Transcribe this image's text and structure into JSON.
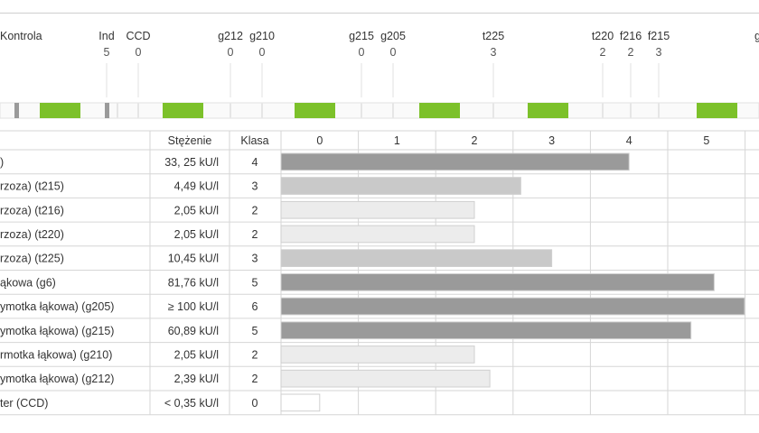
{
  "strip": {
    "labels": [
      {
        "name": "Kontrola",
        "class": ""
      },
      {
        "name": "Ind",
        "class": "5"
      },
      {
        "name": "CCD",
        "class": "0"
      },
      {
        "name": "g212",
        "class": "0"
      },
      {
        "name": "g210",
        "class": "0"
      },
      {
        "name": "g215",
        "class": "0"
      },
      {
        "name": "g205",
        "class": "0"
      },
      {
        "name": "t225",
        "class": "3"
      },
      {
        "name": "t220",
        "class": "2"
      },
      {
        "name": "f216",
        "class": "2"
      },
      {
        "name": "f215",
        "class": "3"
      },
      {
        "name": "g",
        "class": ""
      }
    ],
    "colors": {
      "green": "#7cc12a",
      "gray": "#9a9a9a",
      "light": "#e6e6e6"
    }
  },
  "chart_data": {
    "type": "bar",
    "headers": {
      "concentration": "Stężenie",
      "class": "Klasa"
    },
    "x_ticks": [
      "0",
      "1",
      "2",
      "3",
      "4",
      "5"
    ],
    "xlim": [
      0,
      6
    ],
    "rows": [
      {
        "label": ")",
        "concentration": "33, 25 kU/l",
        "class": "4",
        "value": 4.5
      },
      {
        "label": "rzoza) (t215)",
        "concentration": "4,49 kU/l",
        "class": "3",
        "value": 3.1
      },
      {
        "label": "rzoza) (t216)",
        "concentration": "2,05 kU/l",
        "class": "2",
        "value": 2.5
      },
      {
        "label": "rzoza) (t220)",
        "concentration": "2,05 kU/l",
        "class": "2",
        "value": 2.5
      },
      {
        "label": "rzoza) (t225)",
        "concentration": "10,45 kU/l",
        "class": "3",
        "value": 3.5
      },
      {
        "label": "ąkowa (g6)",
        "concentration": "81,76 kU/l",
        "class": "5",
        "value": 5.6
      },
      {
        "label": "ymotka łąkowa) (g205)",
        "concentration": "≥ 100 kU/l",
        "class": "6",
        "value": 6.0
      },
      {
        "label": "ymotka łąkowa) (g215)",
        "concentration": "60,89 kU/l",
        "class": "5",
        "value": 5.3
      },
      {
        "label": "rmotka łąkowa) (g210)",
        "concentration": "2,05 kU/l",
        "class": "2",
        "value": 2.5
      },
      {
        "label": "ymotka łąkowa) (g212)",
        "concentration": "2,39 kU/l",
        "class": "2",
        "value": 2.7
      },
      {
        "label": "ter (CCD)",
        "concentration": "< 0,35 kU/l",
        "class": "0",
        "value": 0.5
      }
    ],
    "class_colors": {
      "0": "#ffffff",
      "2": "#ececec",
      "3": "#c9c9c9",
      "4": "#9a9a9a",
      "5": "#9a9a9a",
      "6": "#9a9a9a"
    }
  }
}
